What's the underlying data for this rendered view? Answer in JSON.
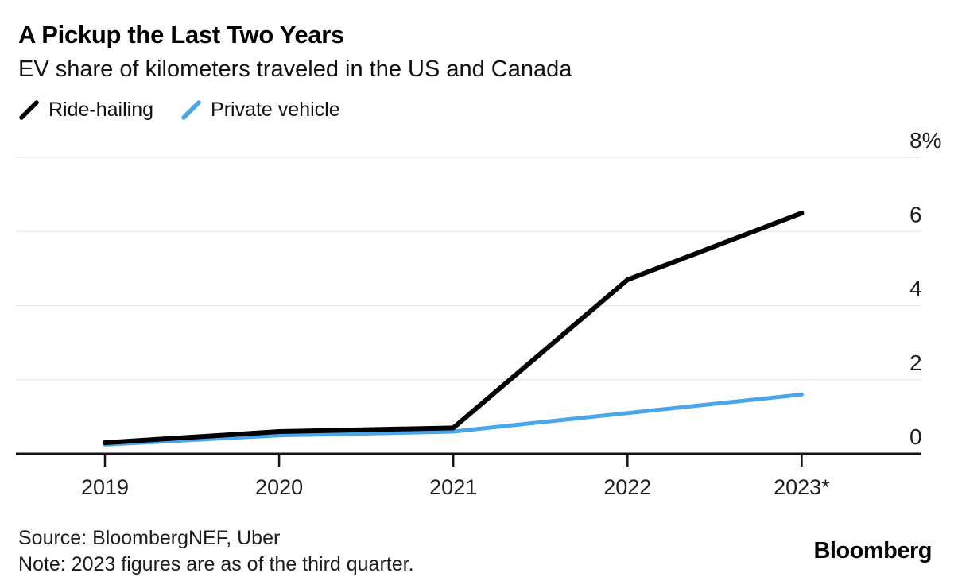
{
  "chart_data": {
    "type": "line",
    "title": "A Pickup the Last Two Years",
    "subtitle": "EV share of kilometers traveled in the US and Canada",
    "categories": [
      "2019",
      "2020",
      "2021",
      "2022",
      "2023*"
    ],
    "series": [
      {
        "name": "Ride-hailing",
        "color": "#000000",
        "line_width": 6,
        "values": [
          0.3,
          0.6,
          0.7,
          4.7,
          6.5
        ]
      },
      {
        "name": "Private vehicle",
        "color": "#4AA6EB",
        "line_width": 5,
        "values": [
          0.25,
          0.5,
          0.6,
          1.1,
          1.6
        ]
      }
    ],
    "unit": "%",
    "xlabel": "",
    "ylabel": "",
    "ylim": [
      0,
      8
    ],
    "yticks": {
      "values": [
        0,
        2,
        4,
        6,
        8
      ],
      "labels": [
        "0",
        "2",
        "4",
        "6",
        "8%"
      ]
    },
    "grid": "horizontal gridlines on, zero baseline emphasized",
    "legend_position": "top-left"
  },
  "footer": {
    "source": "Source: BloombergNEF, Uber",
    "note": "Note: 2023 figures are as of the third quarter.",
    "logo": "Bloomberg"
  },
  "colors": {
    "accent_blue": "#4AA6EB",
    "series_black": "#000000",
    "gridline": "#e2e2e2",
    "axis": "#141414",
    "text": "#111111"
  }
}
